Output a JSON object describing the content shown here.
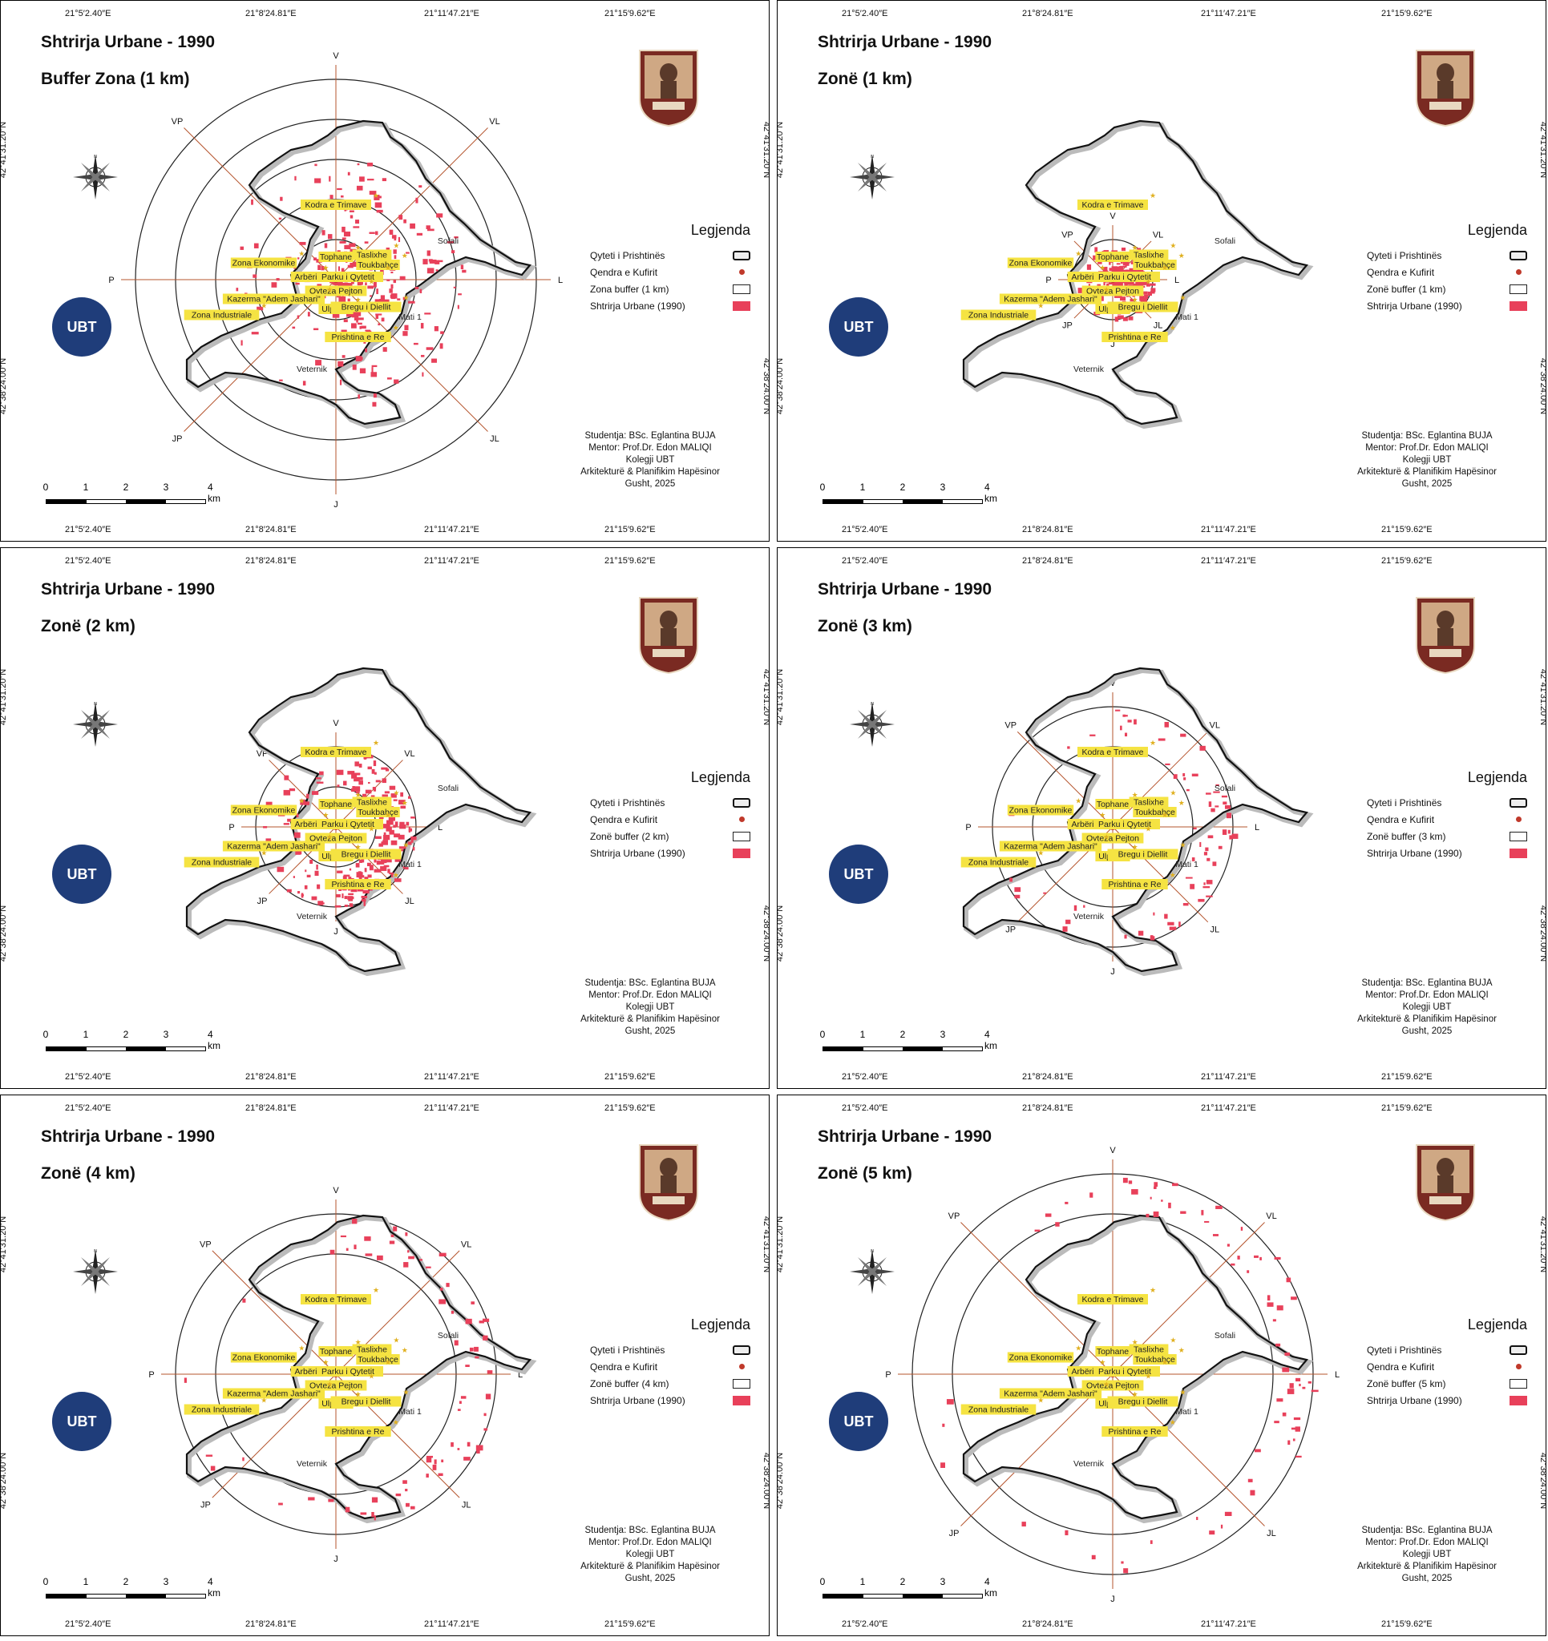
{
  "map": {
    "title": "Shtrirja Urbane - 1990",
    "coords_top": [
      "21°5′2.40″E",
      "21°8′24.81″E",
      "21°11′47.21″E",
      "21°15′9.62″E"
    ],
    "coords_bottom": [
      "21°5′2.40″E",
      "21°8′24.81″E",
      "21°11′47.21″E",
      "21°15′9.62″E"
    ],
    "coords_side": [
      "42°41′31.20″N",
      "42°38′24.00″N"
    ],
    "directions": {
      "n": "V",
      "ne": "VL",
      "e": "L",
      "se": "JL",
      "s": "J",
      "sw": "JP",
      "w": "P",
      "nw": "VP"
    },
    "places": [
      "Kodra e Trimave",
      "Tophane",
      "Taslixhe",
      "Toukbahçe",
      "Parku i Qytetit",
      "Qyteza Pejton",
      "Arbëri",
      "Zona Ekonomike",
      "Kazerma \"Adem Jashari\"",
      "Ulpiana",
      "Bregu i Diellit",
      "Zona Industriale",
      "Prishtina e Re",
      "Sofali",
      "Mati 1",
      "Veternik"
    ],
    "legend_title": "Legjenda",
    "legend_city": "Qyteti i Prishtinës",
    "legend_center": "Qendra e Kufirit",
    "legend_urban": "Shtrirja Urbane (1990)",
    "scale_labels": [
      "0",
      "1",
      "2",
      "3",
      "4 km"
    ],
    "credits": [
      "Studentja: BSc. Eglantina BUJA",
      "Mentor: Prof.Dr. Edon MALIQI",
      "Kolegji UBT",
      "Arkitekturë & Planifikim Hapësinor",
      "Gusht, 2025"
    ],
    "ubt_logo": "UBT",
    "colors": {
      "urban": "#e8405a",
      "axis": "#b5552e",
      "boundary": "#111111",
      "center": "#c0392b"
    }
  },
  "panels": [
    {
      "subtitle": "Buffer Zona (1 km)",
      "legend_buffer": "Zona buffer (1 km)",
      "focus_km": 1,
      "rings_km": [
        1,
        2,
        3,
        4,
        5
      ]
    },
    {
      "subtitle": "Zonë (1 km)",
      "legend_buffer": "Zonë buffer (1 km)",
      "focus_km": 1,
      "rings_km": [
        1
      ]
    },
    {
      "subtitle": "Zonë (2 km)",
      "legend_buffer": "Zonë buffer (2 km)",
      "focus_km": 2,
      "rings_km": [
        1,
        2
      ]
    },
    {
      "subtitle": "Zonë (3 km)",
      "legend_buffer": "Zonë buffer (3 km)",
      "focus_km": 3,
      "rings_km": [
        2,
        3
      ]
    },
    {
      "subtitle": "Zonë (4 km)",
      "legend_buffer": "Zonë buffer (4 km)",
      "focus_km": 4,
      "rings_km": [
        3,
        4
      ]
    },
    {
      "subtitle": "Zonë (5 km)",
      "legend_buffer": "Zonë buffer (5 km)",
      "focus_km": 5,
      "rings_km": [
        4,
        5
      ]
    }
  ]
}
